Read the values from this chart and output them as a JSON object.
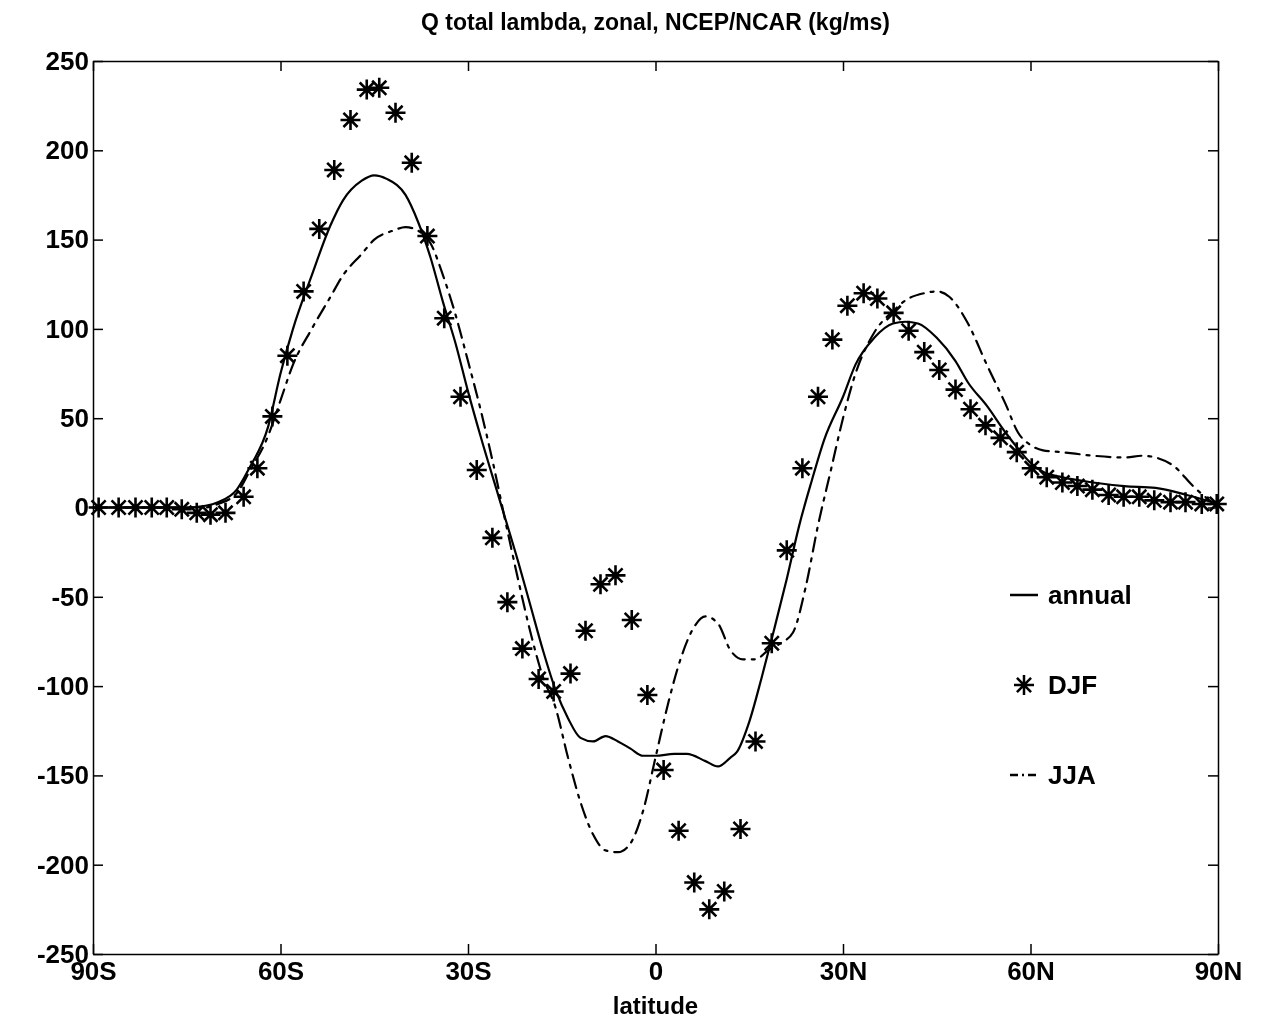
{
  "chart_data": {
    "type": "line",
    "title": "Q total lambda, zonal, NCEP/NCAR (kg/ms)",
    "xlabel": "latitude",
    "xlim": [
      -90,
      90
    ],
    "xticks": [
      {
        "value": -90,
        "label": "90S"
      },
      {
        "value": -60,
        "label": "60S"
      },
      {
        "value": -30,
        "label": "30S"
      },
      0,
      {
        "value": 30,
        "label": "30N"
      },
      {
        "value": 60,
        "label": "60N"
      },
      {
        "value": 90,
        "label": "90N"
      }
    ],
    "ylim": [
      -250,
      250
    ],
    "yticks": [
      -250,
      -200,
      -150,
      -100,
      -50,
      0,
      50,
      100,
      150,
      200,
      250
    ],
    "grid": false,
    "legend": "right",
    "series": [
      {
        "name": "annual",
        "color": "#000000",
        "line_style": "solid",
        "marker": "none",
        "x": [
          -90,
          -75,
          -72,
          -70,
          -67,
          -65,
          -62,
          -60,
          -58,
          -55,
          -52,
          -50,
          -47,
          -45,
          -43,
          -40,
          -38,
          -36,
          -34,
          -32,
          -30,
          -28,
          -25,
          -22,
          -20,
          -18,
          -16,
          -14,
          -12,
          -10,
          -8,
          -6,
          -4,
          -2,
          0,
          3,
          5,
          8,
          10,
          12,
          13,
          15,
          17,
          19,
          21,
          23,
          25,
          27,
          30,
          32,
          35,
          38,
          40,
          42,
          45,
          48,
          50,
          53,
          56,
          58,
          60,
          62,
          65,
          70,
          75,
          80,
          85,
          90
        ],
        "values": [
          0,
          0,
          1,
          3,
          10,
          22,
          45,
          75,
          100,
          130,
          158,
          172,
          183,
          186,
          184,
          175,
          160,
          140,
          115,
          92,
          65,
          40,
          5,
          -30,
          -55,
          -80,
          -102,
          -118,
          -129,
          -131,
          -128,
          -131,
          -135,
          -139,
          -139,
          -138,
          -138,
          -142,
          -145,
          -140,
          -137,
          -120,
          -95,
          -68,
          -40,
          -10,
          15,
          38,
          62,
          80,
          95,
          103,
          104,
          103,
          95,
          82,
          70,
          57,
          42,
          33,
          25,
          20,
          17,
          14,
          12,
          11,
          7,
          2
        ]
      },
      {
        "name": "DJF",
        "type": "scatter",
        "color": "#000000",
        "marker": "cross",
        "x": [
          -89.1,
          -85.9,
          -83.2,
          -80.6,
          -78.2,
          -75.8,
          -73.4,
          -71.2,
          -68.8,
          -65.9,
          -63.7,
          -61.3,
          -58.9,
          -56.3,
          -53.8,
          -51.4,
          -48.8,
          -46.2,
          -44.2,
          -41.6,
          -39,
          -36.5,
          -33.8,
          -31.2,
          -28.6,
          -26.1,
          -23.7,
          -21.3,
          -18.7,
          -16.3,
          -13.6,
          -11.2,
          -8.8,
          -6.4,
          -3.8,
          -1.3,
          1.3,
          3.7,
          6.2,
          8.6,
          11,
          13.6,
          16,
          18.6,
          21,
          23.5,
          26,
          28.3,
          30.7,
          33.3,
          35.5,
          38.1,
          40.5,
          43,
          45.4,
          48,
          50.4,
          52.8,
          55.2,
          57.8,
          60.2,
          62.6,
          65.1,
          67.5,
          69.9,
          72.5,
          74.9,
          77.4,
          79.8,
          82.4,
          84.8,
          87.4,
          89.8
        ],
        "values": [
          0,
          0,
          0,
          0,
          0,
          -1,
          -3,
          -4,
          -3,
          6,
          22,
          51,
          85,
          121,
          156,
          189,
          217,
          234,
          235,
          221,
          193,
          152,
          106,
          62,
          21,
          -17,
          -53,
          -79,
          -96,
          -103,
          -93,
          -69,
          -43,
          -38,
          -63,
          -105,
          -147,
          -181,
          -210,
          -225,
          -215,
          -180,
          -131,
          -76,
          -24,
          22,
          62,
          94,
          113,
          120,
          117,
          109,
          99,
          87,
          77,
          66,
          55,
          46,
          39,
          31,
          22,
          17,
          14,
          12,
          10,
          7,
          6,
          6,
          4,
          3,
          3,
          2,
          2
        ]
      },
      {
        "name": "JJA",
        "color": "#000000",
        "line_style": "dashed",
        "marker": "none",
        "x": [
          -90,
          -72,
          -70,
          -67,
          -65,
          -62,
          -60,
          -58,
          -55,
          -52,
          -50,
          -47,
          -45,
          -42,
          -40,
          -38,
          -36,
          -34,
          -32,
          -30,
          -28,
          -26,
          -24,
          -22,
          -20,
          -18,
          -16,
          -14,
          -12,
          -10,
          -8,
          -6,
          -4,
          -2,
          0,
          2,
          4,
          6,
          8,
          10,
          12,
          14,
          16,
          18,
          20,
          22,
          24,
          26,
          28,
          30,
          32,
          35,
          38,
          40,
          43,
          45,
          47,
          50,
          53,
          56,
          58,
          60,
          62,
          65,
          70,
          75,
          78,
          80,
          83,
          86,
          89
        ],
        "values": [
          0,
          0,
          2,
          8,
          20,
          40,
          60,
          80,
          100,
          118,
          130,
          142,
          150,
          155,
          157,
          155,
          148,
          130,
          108,
          82,
          55,
          25,
          -8,
          -40,
          -70,
          -95,
          -112,
          -140,
          -165,
          -183,
          -192,
          -193,
          -188,
          -170,
          -140,
          -110,
          -85,
          -68,
          -61,
          -65,
          -80,
          -85,
          -85,
          -80,
          -76,
          -70,
          -45,
          -10,
          20,
          50,
          75,
          98,
          110,
          116,
          120,
          121,
          118,
          103,
          80,
          58,
          42,
          35,
          32,
          31,
          29,
          28,
          29,
          28,
          23,
          12,
          3
        ]
      }
    ]
  }
}
